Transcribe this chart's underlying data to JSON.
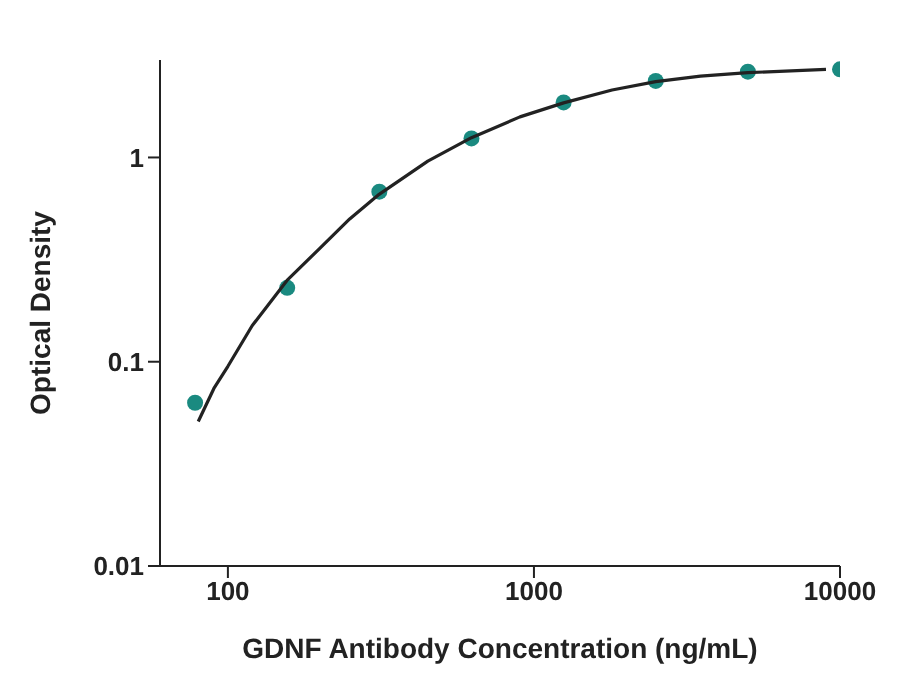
{
  "chart_data": {
    "type": "scatter",
    "xlabel": "GDNF Antibody Concentration (ng/mL)",
    "ylabel": "Optical Density",
    "log": "xy",
    "grid": false,
    "legend": false,
    "xlim": [
      60,
      10000
    ],
    "xticks": [
      100,
      1000,
      10000
    ],
    "ylim": [
      0.01,
      3
    ],
    "yticks": [
      0.01,
      0.1,
      1
    ],
    "series": [
      {
        "color": "#1a8a80",
        "marker": "circle",
        "x": [
          78.125,
          156.25,
          312.5,
          625,
          1250,
          2500,
          5000,
          10000
        ],
        "values": [
          0.063,
          0.23,
          0.68,
          1.24,
          1.86,
          2.37,
          2.63,
          2.7
        ]
      },
      {
        "type": "line",
        "color": "#222222",
        "marker": "none",
        "line_style": "solid",
        "x": [
          80,
          90,
          100,
          120,
          156,
          200,
          250,
          312,
          450,
          625,
          900,
          1250,
          1800,
          2500,
          3500,
          5000,
          9000
        ],
        "values": [
          0.051,
          0.074,
          0.095,
          0.15,
          0.25,
          0.36,
          0.5,
          0.66,
          0.96,
          1.25,
          1.58,
          1.85,
          2.14,
          2.35,
          2.5,
          2.6,
          2.7
        ]
      }
    ]
  }
}
